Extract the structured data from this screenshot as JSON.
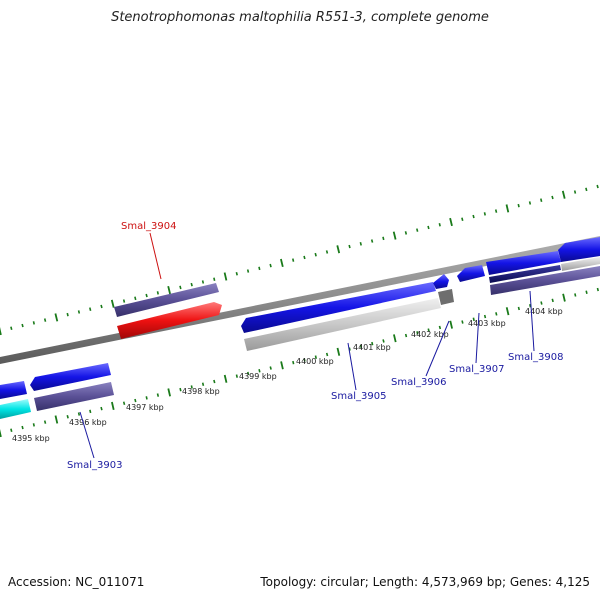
{
  "title": "Stenotrophomonas maltophilia R551-3, complete genome",
  "accession": "Accession: NC_011071",
  "summary": "Topology: circular; Length: 4,573,969 bp; Genes: 4,125",
  "colors": {
    "backbone": "#8c8c8c",
    "ticks": "#1a7a1a",
    "forward_gene": "#1414e6",
    "reverse_gene": "#5a5096",
    "selected_gene": "#ee1111",
    "highlight_gene": "#00e5e5",
    "pseudo_gene": "#c8c8c8",
    "label_blue": "#1a1aa0",
    "label_red": "#cc1111"
  },
  "kbp_labels": [
    "4395 kbp",
    "4396 kbp",
    "4397 kbp",
    "4398 kbp",
    "4399 kbp",
    "4400 kbp",
    "4401 kbp",
    "4402 kbp",
    "4403 kbp",
    "4404 kbp"
  ],
  "gene_labels": [
    "Smal_3904",
    "Smal_3905",
    "Smal_3906",
    "Smal_3907",
    "Smal_3908",
    "Smal_3903"
  ]
}
